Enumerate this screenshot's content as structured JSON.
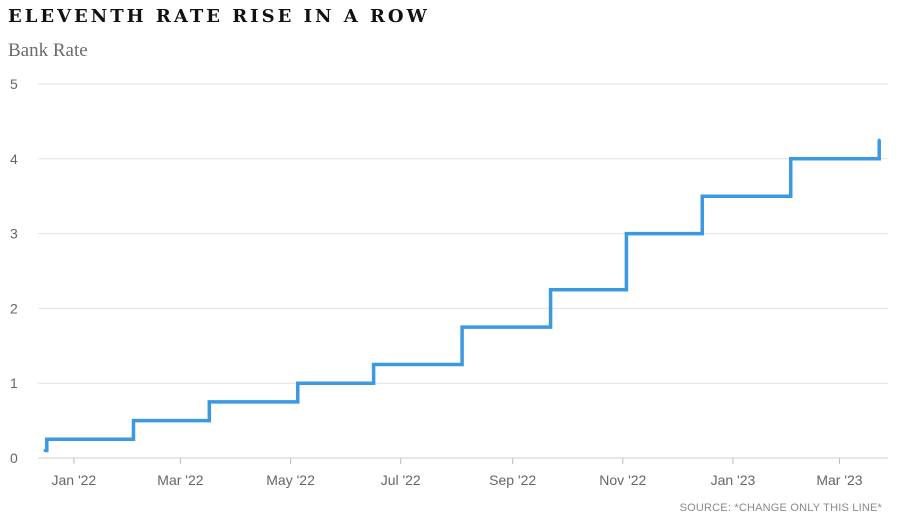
{
  "title": "ELEVENTH RATE RISE IN A ROW",
  "subtitle": "Bank Rate",
  "source": "SOURCE: *CHANGE ONLY THIS LINE*",
  "chart_data": {
    "type": "line",
    "step": true,
    "title": "ELEVENTH RATE RISE IN A ROW",
    "ylabel": "Bank Rate",
    "xlabel": "",
    "ylim": [
      0,
      5
    ],
    "yticks": [
      0,
      1,
      2,
      3,
      4,
      5
    ],
    "xlim": [
      "2021-12-16",
      "2023-03-24"
    ],
    "xticks": [
      {
        "date": "2022-01-01",
        "label": "Jan '22"
      },
      {
        "date": "2022-03-01",
        "label": "Mar '22"
      },
      {
        "date": "2022-05-01",
        "label": "May '22"
      },
      {
        "date": "2022-07-01",
        "label": "Jul '22"
      },
      {
        "date": "2022-09-01",
        "label": "Sep '22"
      },
      {
        "date": "2022-11-01",
        "label": "Nov '22"
      },
      {
        "date": "2023-01-01",
        "label": "Jan '23"
      },
      {
        "date": "2023-03-01",
        "label": "Mar '23"
      }
    ],
    "grid": true,
    "color": "#3a99e0",
    "series": [
      {
        "x": [
          "2021-12-16",
          "2021-12-17",
          "2022-02-03",
          "2022-03-17",
          "2022-05-05",
          "2022-06-16",
          "2022-08-04",
          "2022-09-22",
          "2022-11-03",
          "2022-12-15",
          "2023-02-02",
          "2023-03-23"
        ],
        "y": [
          0.1,
          0.25,
          0.5,
          0.75,
          1.0,
          1.25,
          1.75,
          2.25,
          3.0,
          3.5,
          4.0,
          4.25
        ]
      }
    ]
  }
}
